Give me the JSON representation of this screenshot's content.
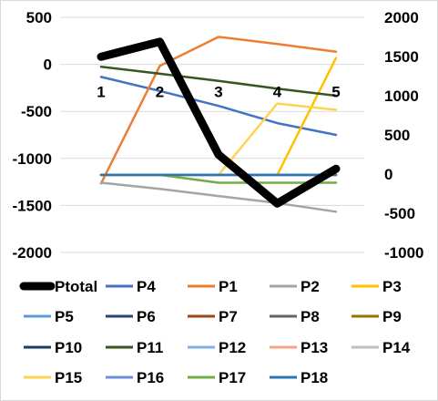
{
  "chart_data": {
    "type": "line",
    "title": "",
    "xlabel": "",
    "ylabel": "",
    "categories": [
      "1",
      "2",
      "3",
      "4",
      "5"
    ],
    "y_left": {
      "lim": [
        -2000,
        500
      ],
      "ticks": [
        "500",
        "0",
        "-500",
        "-1000",
        "-1500",
        "-2000"
      ]
    },
    "y_right": {
      "lim": [
        -1000,
        2000
      ],
      "ticks": [
        "2000",
        "1500",
        "1000",
        "500",
        "0",
        "-500",
        "-1000"
      ]
    },
    "grid": true,
    "legend_position": "bottom",
    "series": [
      {
        "name": "Ptotal",
        "axis": "left",
        "color": "#000000",
        "width": 9,
        "values": [
          80,
          240,
          -960,
          -1480,
          -1110
        ]
      },
      {
        "name": "P4",
        "axis": "right",
        "color": "#4472c4",
        "width": 2.5,
        "values": [
          1240,
          1060,
          870,
          650,
          500
        ]
      },
      {
        "name": "P1",
        "axis": "right",
        "color": "#ed7d31",
        "width": 2.5,
        "values": [
          -120,
          1380,
          1750,
          1660,
          1560
        ]
      },
      {
        "name": "P2",
        "axis": "right",
        "color": "#a5a5a5",
        "width": 2.5,
        "values": [
          -110,
          -190,
          -280,
          -370,
          -480
        ]
      },
      {
        "name": "P3",
        "axis": "right",
        "color": "#ffc000",
        "width": 2.5,
        "values": [
          -10,
          -10,
          -10,
          -10,
          1480
        ]
      },
      {
        "name": "P5",
        "axis": "right",
        "color": "#5b9bd5",
        "width": 2.5,
        "values": [
          -10,
          -10,
          -10,
          -10,
          -10
        ]
      },
      {
        "name": "P6",
        "axis": "right",
        "color": "#264478",
        "width": 2.5,
        "values": [
          -10,
          -10,
          -10,
          -10,
          -10
        ]
      },
      {
        "name": "P7",
        "axis": "right",
        "color": "#9e480e",
        "width": 2.5,
        "values": [
          -10,
          -10,
          -10,
          -10,
          -10
        ]
      },
      {
        "name": "P8",
        "axis": "right",
        "color": "#636363",
        "width": 2.5,
        "values": [
          -10,
          -10,
          -10,
          -10,
          -10
        ]
      },
      {
        "name": "P9",
        "axis": "right",
        "color": "#997300",
        "width": 2.5,
        "values": [
          -10,
          -10,
          -10,
          -10,
          -10
        ]
      },
      {
        "name": "P10",
        "axis": "right",
        "color": "#203864",
        "width": 2.5,
        "values": [
          -10,
          -10,
          -10,
          -10,
          -10
        ]
      },
      {
        "name": "P11",
        "axis": "right",
        "color": "#375623",
        "width": 2.5,
        "values": [
          1370,
          1280,
          1190,
          1090,
          1000
        ]
      },
      {
        "name": "P12",
        "axis": "right",
        "color": "#7fb1e5",
        "width": 2.5,
        "values": [
          -10,
          -10,
          -10,
          -10,
          -10
        ]
      },
      {
        "name": "P13",
        "axis": "right",
        "color": "#f4a582",
        "width": 2.5,
        "values": [
          -10,
          -10,
          -10,
          -10,
          -10
        ]
      },
      {
        "name": "P14",
        "axis": "right",
        "color": "#bfbfbf",
        "width": 2.5,
        "values": [
          -10,
          -10,
          -10,
          -10,
          -10
        ]
      },
      {
        "name": "P15",
        "axis": "right",
        "color": "#ffd34d",
        "width": 2.5,
        "values": [
          -10,
          -10,
          -10,
          900,
          820
        ]
      },
      {
        "name": "P16",
        "axis": "right",
        "color": "#6f8fd8",
        "width": 2.5,
        "values": [
          -10,
          -10,
          -10,
          -10,
          -10
        ]
      },
      {
        "name": "P17",
        "axis": "right",
        "color": "#70ad47",
        "width": 2.5,
        "values": [
          -10,
          -10,
          -110,
          -110,
          -110
        ]
      },
      {
        "name": "P18",
        "axis": "right",
        "color": "#2e75b6",
        "width": 2.5,
        "values": [
          -10,
          -10,
          -10,
          -10,
          -10
        ]
      }
    ]
  }
}
